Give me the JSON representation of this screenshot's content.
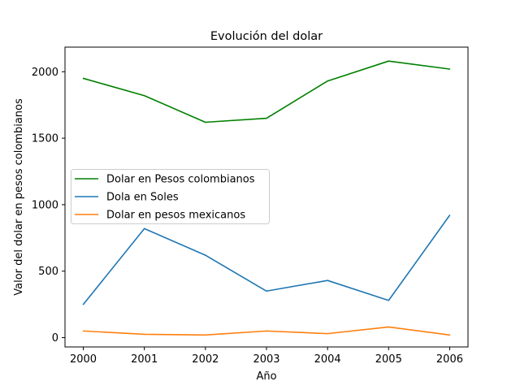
{
  "chart_data": {
    "type": "line",
    "title": "Evolución del dolar",
    "xlabel": "Año",
    "ylabel": "Valor del dolar en pesos colombianos",
    "x": [
      2000,
      2001,
      2002,
      2003,
      2004,
      2005,
      2006
    ],
    "xlim": [
      1999.7,
      2006.3
    ],
    "ylim": [
      -70,
      2185
    ],
    "xticks": [
      "2000",
      "2001",
      "2002",
      "2003",
      "2004",
      "2005",
      "2006"
    ],
    "yticks": [
      0,
      500,
      1000,
      1500,
      2000
    ],
    "ytick_labels": [
      "0",
      "500",
      "1000",
      "1500",
      "2000"
    ],
    "grid": false,
    "legend_position": "center-left",
    "series": [
      {
        "name": "Dolar en Pesos colombianos",
        "color": "#008000",
        "values": [
          1950,
          1820,
          1620,
          1650,
          1930,
          2080,
          2020
        ]
      },
      {
        "name": "Dola en Soles",
        "color": "#1f77b4",
        "values": [
          250,
          820,
          620,
          350,
          430,
          280,
          920
        ]
      },
      {
        "name": "Dolar en pesos mexicanos",
        "color": "#ff7f0e",
        "values": [
          50,
          25,
          20,
          50,
          30,
          80,
          20
        ]
      }
    ]
  }
}
